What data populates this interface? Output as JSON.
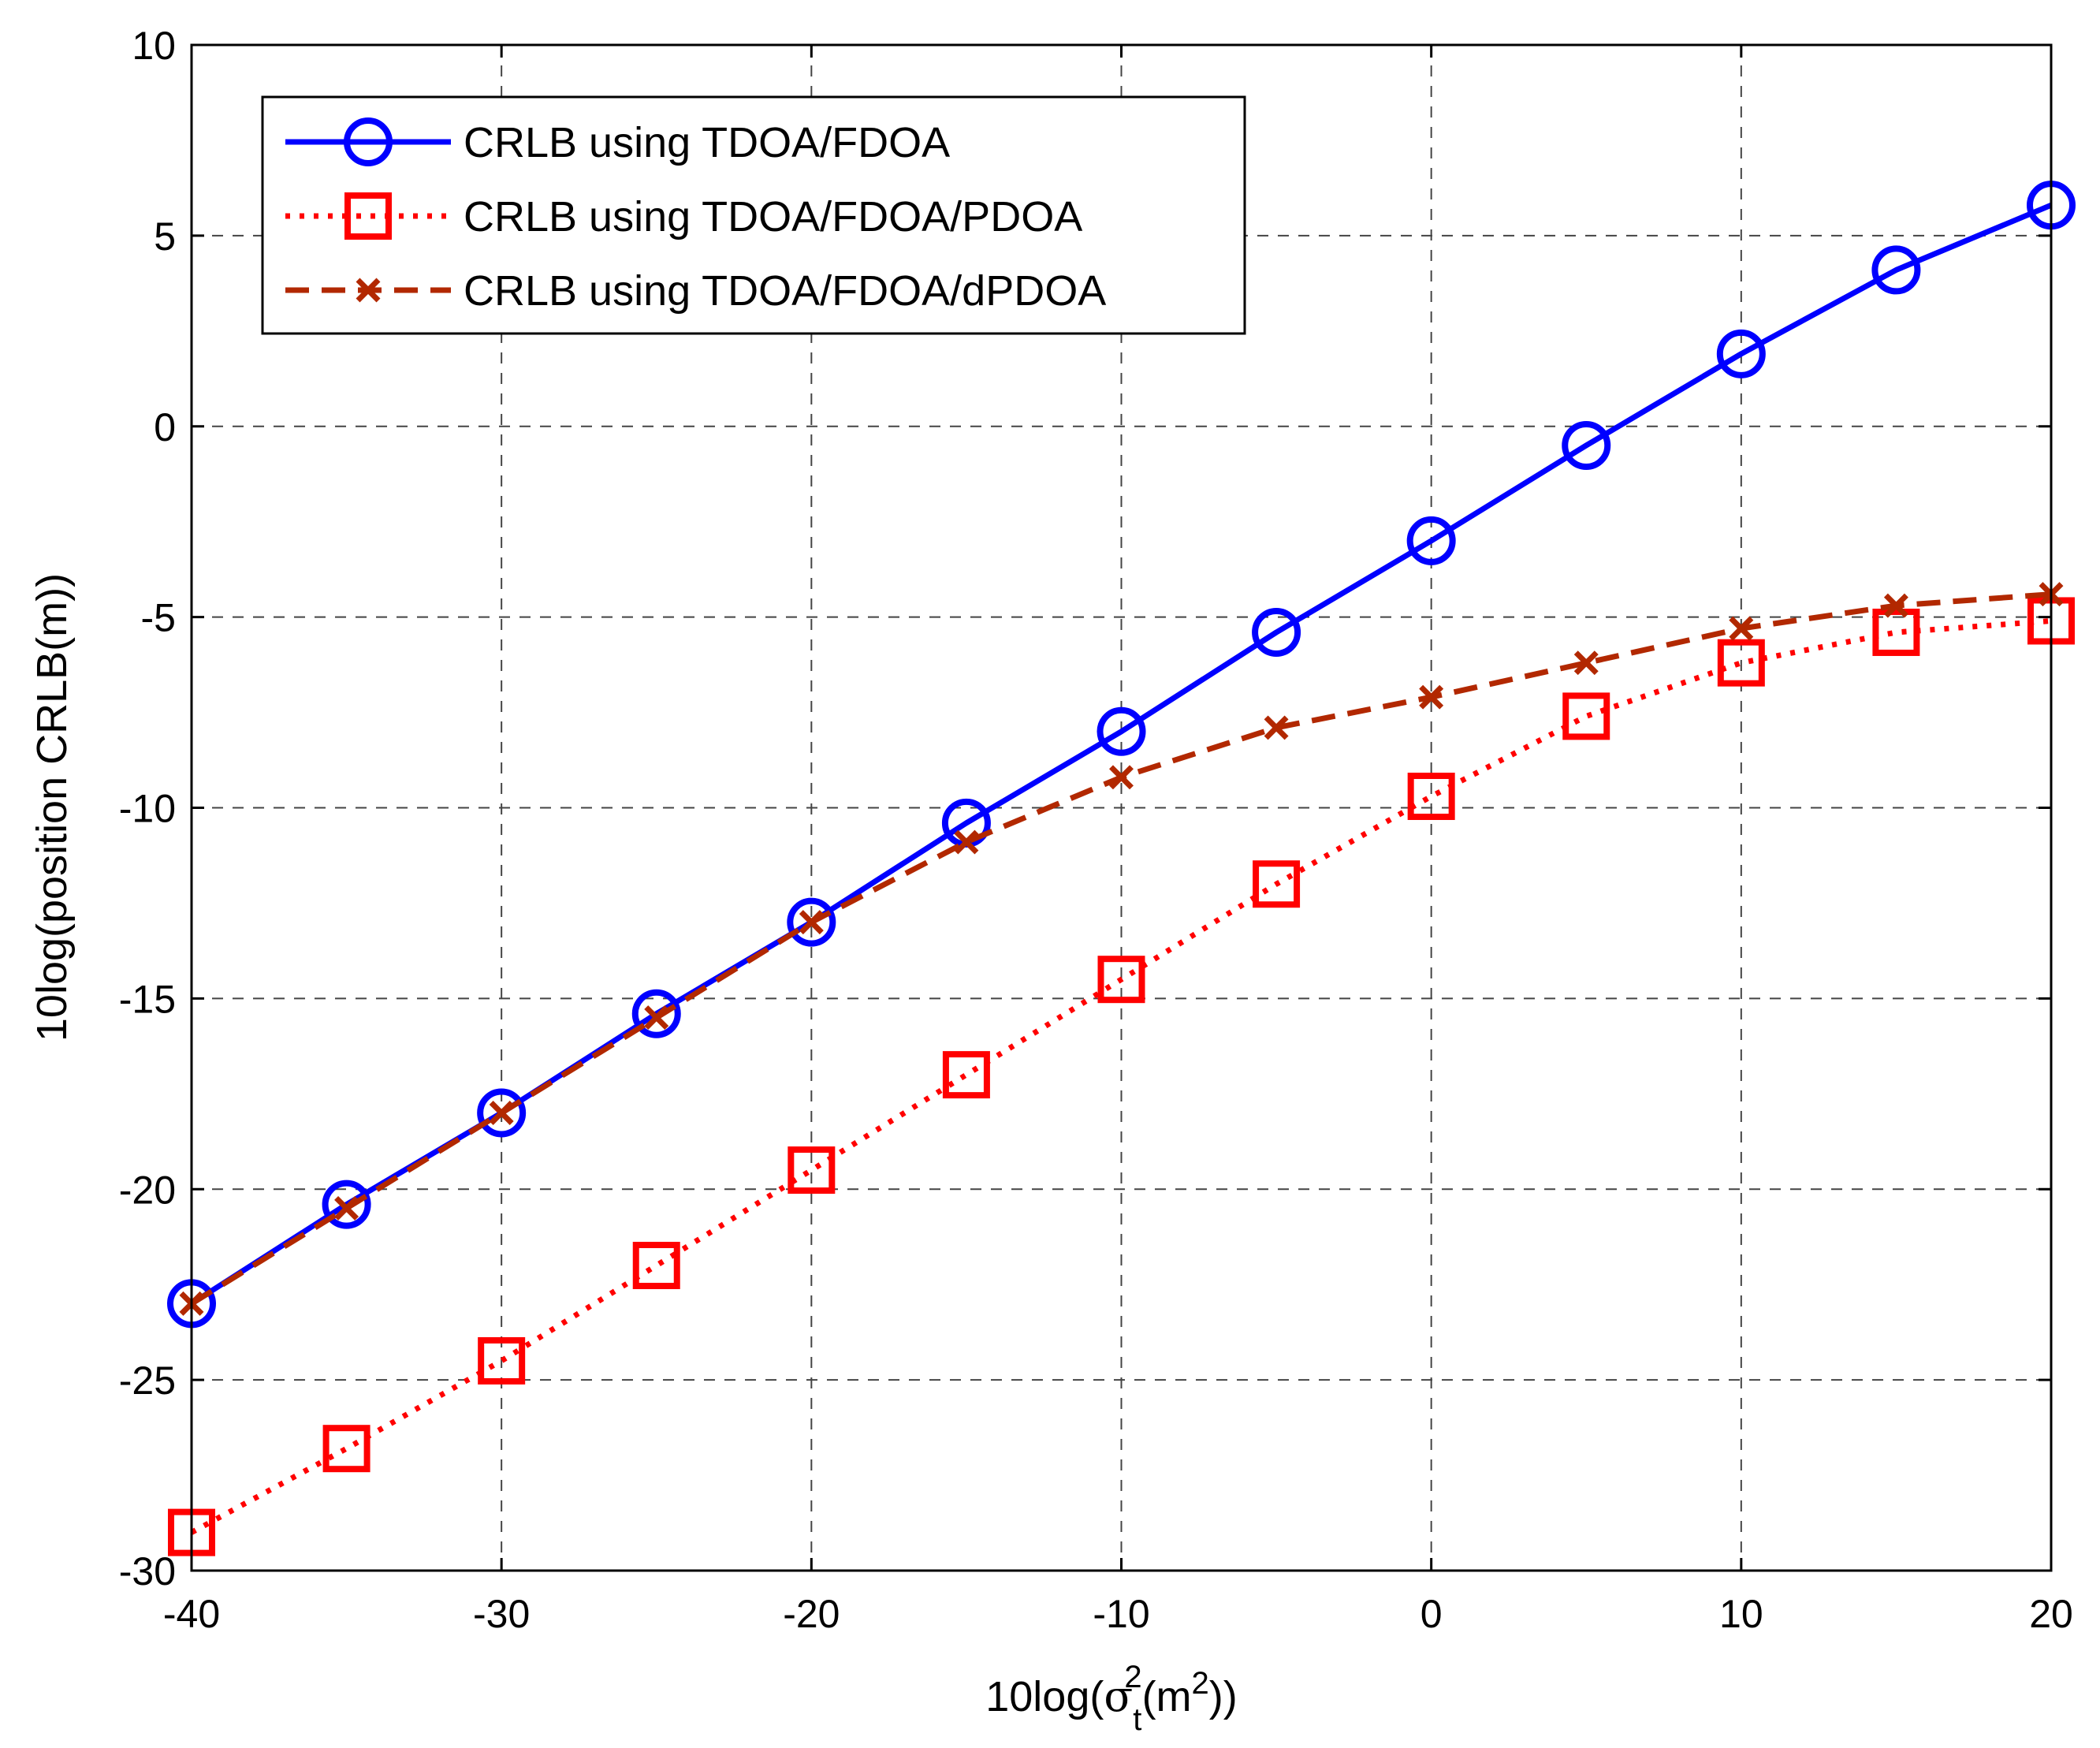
{
  "chart_data": {
    "type": "line",
    "title": "",
    "xlabel": {
      "prefix": "10log(",
      "symbol": "σ",
      "sub": "t",
      "sup": "2",
      "mid": "(m",
      "unit_sup": "2",
      "suffix": "))"
    },
    "ylabel": "10log(position CRLB(m))",
    "xlim": [
      -40,
      20
    ],
    "ylim": [
      -30,
      10
    ],
    "xticks": [
      -40,
      -30,
      -20,
      -10,
      0,
      10,
      20
    ],
    "yticks": [
      -30,
      -25,
      -20,
      -15,
      -10,
      -5,
      0,
      5,
      10
    ],
    "grid": true,
    "legend_position": "top-left",
    "x": [
      -40,
      -35,
      -30,
      -25,
      -20,
      -15,
      -10,
      -5,
      0,
      5,
      10,
      15,
      20
    ],
    "series": [
      {
        "name": "CRLB using TDOA/FDOA",
        "color": "#0000ff",
        "line_style": "solid",
        "marker": "circle",
        "values": [
          -23.0,
          -20.4,
          -18.0,
          -15.4,
          -13.0,
          -10.4,
          -8.0,
          -5.4,
          -3.0,
          -0.5,
          1.9,
          4.1,
          5.8
        ]
      },
      {
        "name": "CRLB using TDOA/FDOA/PDOA",
        "color": "#ff0000",
        "line_style": "dotted",
        "marker": "square",
        "values": [
          -29.0,
          -26.8,
          -24.5,
          -22.0,
          -19.5,
          -17.0,
          -14.5,
          -12.0,
          -9.7,
          -7.6,
          -6.2,
          -5.4,
          -5.1
        ]
      },
      {
        "name": "CRLB using TDOA/FDOA/dPDOA",
        "color": "#b22800",
        "line_style": "dashed",
        "marker": "x",
        "values": [
          -23.0,
          -20.5,
          -18.0,
          -15.5,
          -13.0,
          -10.9,
          -9.2,
          -7.9,
          -7.1,
          -6.2,
          -5.3,
          -4.7,
          -4.4
        ]
      }
    ]
  }
}
